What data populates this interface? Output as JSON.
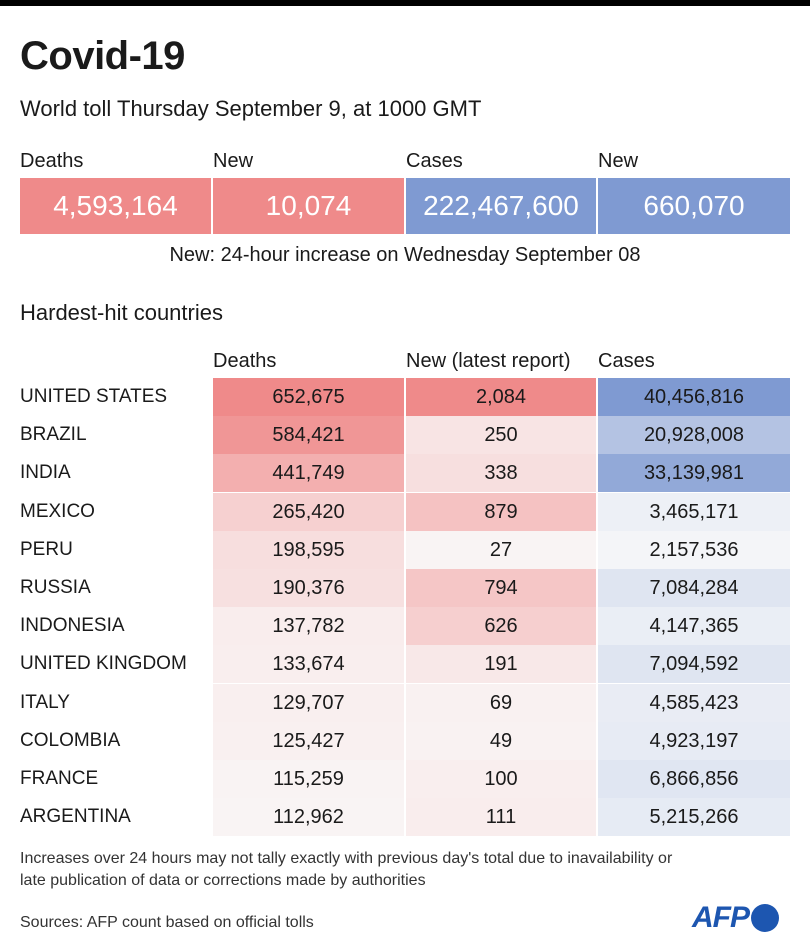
{
  "title": "Covid-19",
  "subtitle": "World toll Thursday September 9,  at 1000 GMT",
  "totals": {
    "labels": [
      "Deaths",
      "New",
      "Cases",
      "New"
    ],
    "values": [
      "4,593,164",
      "10,074",
      "222,467,600",
      "660,070"
    ],
    "colors": [
      "#ef8a8a",
      "#ef8a8a",
      "#7f9ad2",
      "#7f9ad2"
    ],
    "note": "New: 24-hour increase on Wednesday September 08"
  },
  "section_title": "Hardest-hit countries",
  "chart_data": {
    "type": "table",
    "columns": [
      "Deaths",
      "New (latest report)",
      "Cases"
    ],
    "rows": [
      {
        "country": "UNITED STATES",
        "deaths": 652675,
        "new": 2084,
        "cases": 40456816
      },
      {
        "country": "BRAZIL",
        "deaths": 584421,
        "new": 250,
        "cases": 20928008
      },
      {
        "country": "INDIA",
        "deaths": 441749,
        "new": 338,
        "cases": 33139981
      },
      {
        "country": "MEXICO",
        "deaths": 265420,
        "new": 879,
        "cases": 3465171
      },
      {
        "country": "PERU",
        "deaths": 198595,
        "new": 27,
        "cases": 2157536
      },
      {
        "country": "RUSSIA",
        "deaths": 190376,
        "new": 794,
        "cases": 7084284
      },
      {
        "country": "INDONESIA",
        "deaths": 137782,
        "new": 626,
        "cases": 4147365
      },
      {
        "country": "UNITED KINGDOM",
        "deaths": 133674,
        "new": 191,
        "cases": 7094592
      },
      {
        "country": "ITALY",
        "deaths": 129707,
        "new": 69,
        "cases": 4585423
      },
      {
        "country": "COLOMBIA",
        "deaths": 125427,
        "new": 49,
        "cases": 4923197
      },
      {
        "country": "FRANCE",
        "deaths": 115259,
        "new": 100,
        "cases": 6866856
      },
      {
        "country": "ARGENTINA",
        "deaths": 112962,
        "new": 111,
        "cases": 5215266
      }
    ],
    "colors": {
      "deaths": "#ef8a8a",
      "new": "#ef8a8a",
      "cases": "#7f9ad2"
    }
  },
  "footnote": "Increases over 24 hours may not tally exactly with previous day's total due to inavailability or late publication of data or corrections made by authorities",
  "source": "Sources: AFP count based on official tolls",
  "logo": "AFP"
}
